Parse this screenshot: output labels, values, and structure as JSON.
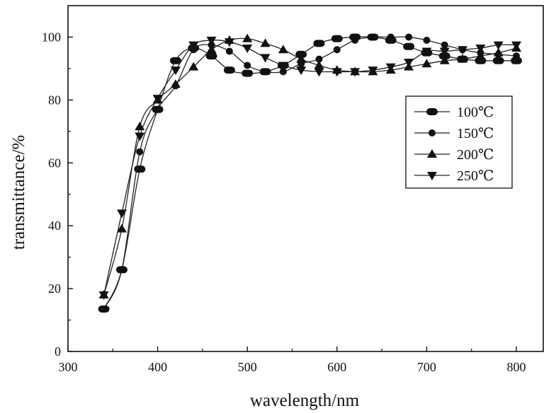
{
  "chart_data": {
    "type": "line",
    "title": "",
    "xlabel": "wavelength/nm",
    "ylabel": "transmittance/%",
    "xlim": [
      300,
      830
    ],
    "ylim": [
      0,
      110
    ],
    "xticks": [
      300,
      400,
      500,
      600,
      700,
      800
    ],
    "yticks": [
      0,
      20,
      40,
      60,
      80,
      100
    ],
    "grid": false,
    "legend_position": "right-middle",
    "series": [
      {
        "name": "100℃",
        "marker": "pill",
        "x": [
          340,
          360,
          380,
          400,
          420,
          440,
          460,
          480,
          500,
          520,
          540,
          560,
          580,
          600,
          620,
          640,
          660,
          680,
          700,
          720,
          740,
          760,
          780,
          800
        ],
        "y": [
          13.5,
          26,
          58,
          77,
          92.5,
          96.5,
          94,
          89.5,
          88.5,
          89,
          91,
          94.5,
          98,
          99.5,
          100,
          100,
          99,
          97,
          95,
          94,
          93,
          92.5,
          92.5,
          92.5
        ]
      },
      {
        "name": "150℃",
        "marker": "circle",
        "x": [
          340,
          360,
          380,
          400,
          420,
          440,
          460,
          480,
          500,
          520,
          540,
          560,
          580,
          600,
          620,
          640,
          660,
          680,
          700,
          720,
          740,
          760,
          780,
          800
        ],
        "y": [
          13.5,
          26,
          63.5,
          77,
          84.5,
          96,
          97.5,
          95.5,
          91,
          89,
          89,
          91.5,
          93,
          96,
          99,
          100,
          100,
          100,
          99,
          97.5,
          96,
          95,
          94.5,
          94
        ]
      },
      {
        "name": "200℃",
        "marker": "triangle-up",
        "x": [
          340,
          360,
          380,
          400,
          420,
          440,
          460,
          480,
          500,
          520,
          540,
          560,
          580,
          600,
          620,
          640,
          660,
          680,
          700,
          720,
          740,
          760,
          780,
          800
        ],
        "y": [
          18,
          39,
          71.5,
          80,
          85,
          90.5,
          96,
          99,
          99.5,
          98,
          96,
          93,
          91,
          89.5,
          89,
          89,
          89.5,
          90.5,
          91.5,
          92.5,
          93,
          94,
          95,
          96.5
        ]
      },
      {
        "name": "250℃",
        "marker": "triangle-down",
        "x": [
          340,
          360,
          380,
          400,
          420,
          440,
          460,
          480,
          500,
          520,
          540,
          560,
          580,
          600,
          620,
          640,
          660,
          680,
          700,
          720,
          740,
          760,
          780,
          800
        ],
        "y": [
          18,
          44,
          68.5,
          80.5,
          89.5,
          97.5,
          99,
          98.5,
          96.5,
          93.5,
          91,
          89.5,
          89,
          89,
          89,
          89.5,
          90.5,
          92,
          95.5,
          95.5,
          96,
          96.5,
          97.5,
          97.5
        ]
      }
    ]
  }
}
